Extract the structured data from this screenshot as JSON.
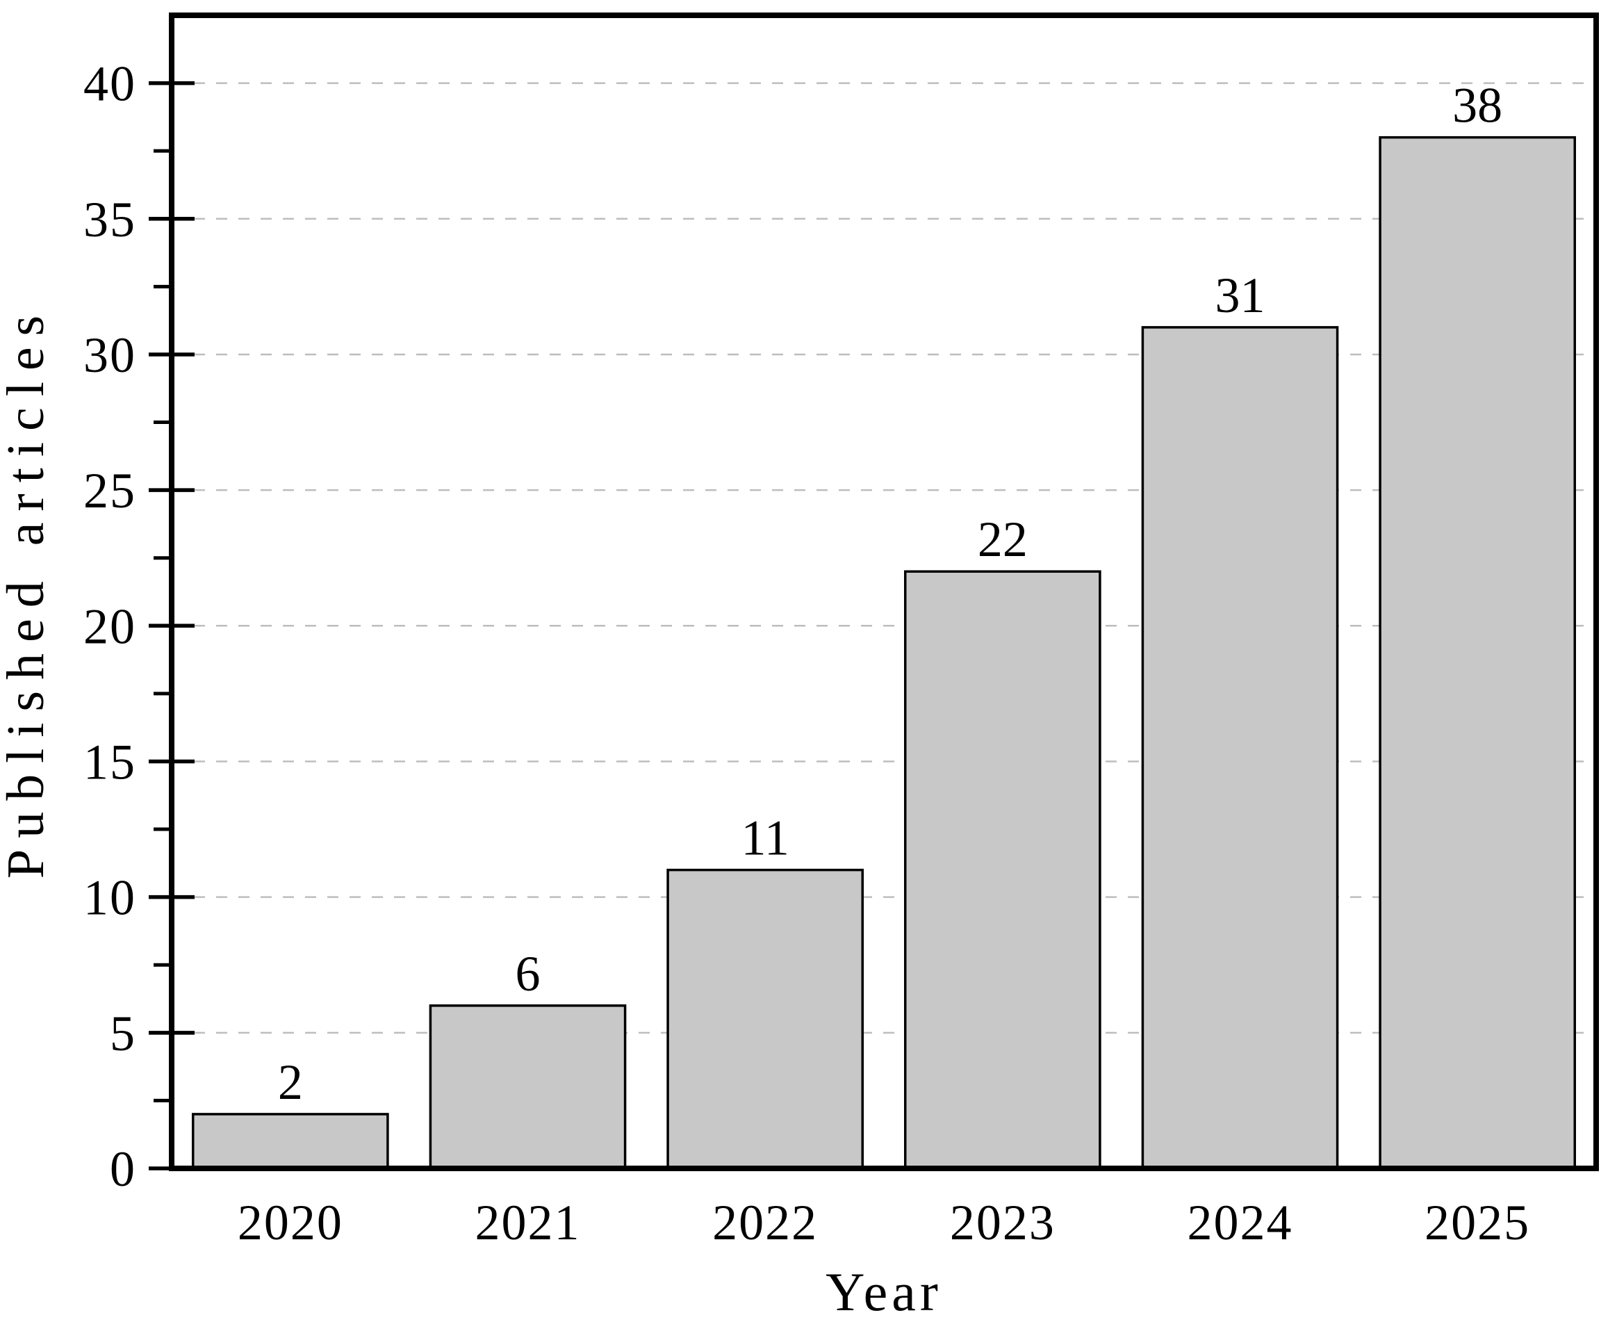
{
  "figure": {
    "background": "#ffffff"
  },
  "chart_data": {
    "type": "bar",
    "title": "",
    "xlabel": "Year",
    "ylabel": "Published articles",
    "categories": [
      "2020",
      "2021",
      "2022",
      "2023",
      "2024",
      "2025"
    ],
    "values": [
      2,
      6,
      11,
      22,
      31,
      38
    ],
    "bar_labels": [
      "2",
      "6",
      "11",
      "22",
      "31",
      "38"
    ],
    "ylim": [
      0,
      42.5
    ],
    "yticks": [
      0,
      5,
      10,
      15,
      20,
      25,
      30,
      35,
      40
    ],
    "minor_tick_step": 2.5,
    "grid": "horizontal dashed gridlines at major y ticks",
    "legend_position": "none",
    "colors": {
      "bar_fill": "#c8c8c8",
      "bar_edge": "#000000",
      "grid_line": "#bdbdbd",
      "axis_line": "#000000",
      "text": "#000000"
    }
  }
}
